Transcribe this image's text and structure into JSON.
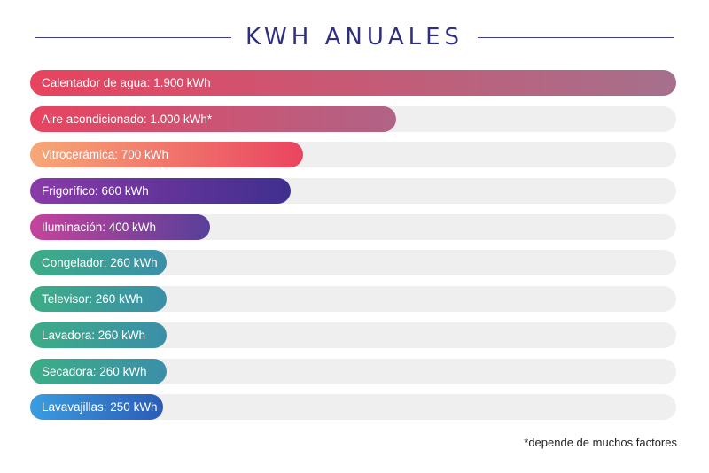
{
  "title": "KWH ANUALES",
  "footnote": "*depende de muchos factores",
  "chart_data": {
    "type": "bar",
    "orientation": "horizontal",
    "title": "KWH ANUALES",
    "xlim": [
      0,
      1900
    ],
    "categories": [
      "Calentador de agua",
      "Aire acondicionado",
      "Vitrocerámica",
      "Frigorífico",
      "Iluminación",
      "Congelador",
      "Televisor",
      "Lavadora",
      "Secadora",
      "Lavavajillas"
    ],
    "values": [
      1900,
      1000,
      700,
      660,
      400,
      260,
      260,
      260,
      260,
      250
    ],
    "labels": [
      "Calentador de agua: 1.900 kWh",
      "Aire acondicionado: 1.000 kWh*",
      "Vitrocerámica: 700 kWh",
      "Frigorífico: 660 kWh",
      "Iluminación: 400 kWh",
      "Congelador: 260 kWh",
      "Televisor: 260 kWh",
      "Lavadora: 260 kWh",
      "Secadora: 260 kWh",
      "Lavavajillas: 250 kWh"
    ],
    "colors": [
      [
        "#e8435f",
        "#a5708c"
      ],
      [
        "#e8435f",
        "#b06487"
      ],
      [
        "#f6a877",
        "#ea4460"
      ],
      [
        "#8a3aa8",
        "#3f2f8e"
      ],
      [
        "#c6439c",
        "#57409a"
      ],
      [
        "#3cad86",
        "#3b8fa8"
      ],
      [
        "#3cad86",
        "#3b8fa8"
      ],
      [
        "#3cad86",
        "#3b8fa8"
      ],
      [
        "#3cad86",
        "#3b8fa8"
      ],
      [
        "#3a9de0",
        "#2b5cb5"
      ]
    ]
  }
}
